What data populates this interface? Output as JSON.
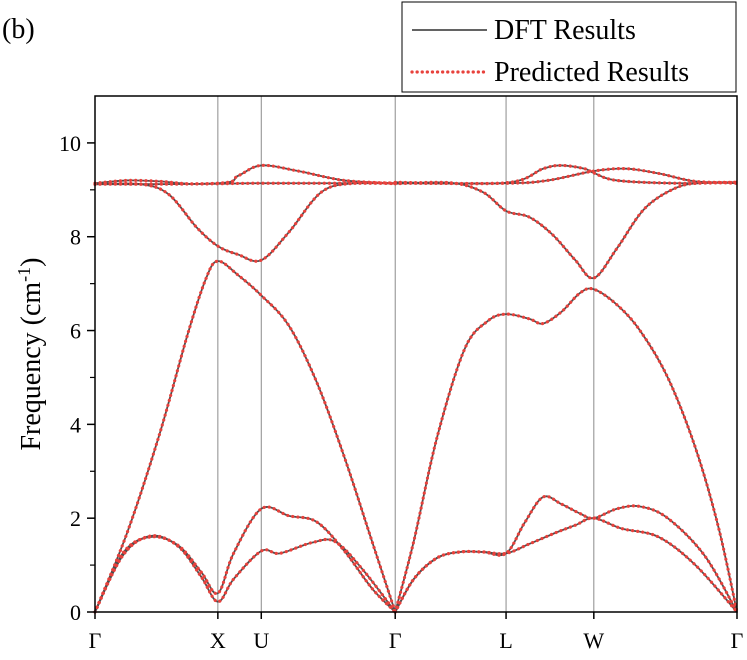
{
  "panel_label": "(b)",
  "chart_data": {
    "type": "line",
    "title": "",
    "ylabel": "Frequency (cm",
    "ylabel_sup": "-1",
    "ylabel_close": ")",
    "ylim": [
      0,
      11
    ],
    "yticks": [
      0,
      2,
      4,
      6,
      8,
      10
    ],
    "xlim": [
      0,
      6.95
    ],
    "kpoints": [
      {
        "label": "Γ",
        "x": 0
      },
      {
        "label": "X",
        "x": 1.33
      },
      {
        "label": "U",
        "x": 1.8
      },
      {
        "label": "Γ",
        "x": 3.25
      },
      {
        "label": "L",
        "x": 4.45
      },
      {
        "label": "W",
        "x": 5.4
      },
      {
        "label": "Γ",
        "x": 6.95
      }
    ],
    "legend": {
      "position": "top-right",
      "entries": [
        {
          "name": "DFT Results",
          "style": "solid",
          "color": "#4d4d4d"
        },
        {
          "name": "Predicted Results",
          "style": "dotted",
          "color": "#e8413c"
        }
      ]
    },
    "series": [
      {
        "points": [
          [
            0,
            0
          ],
          [
            0.3,
            1.2
          ],
          [
            0.6,
            1.62
          ],
          [
            0.9,
            1.4
          ],
          [
            1.15,
            0.75
          ],
          [
            1.33,
            0.22
          ],
          [
            1.5,
            0.7
          ],
          [
            1.8,
            1.3
          ],
          [
            2.0,
            1.25
          ],
          [
            2.35,
            1.48
          ],
          [
            2.6,
            1.5
          ],
          [
            2.9,
            0.9
          ],
          [
            3.25,
            0
          ]
        ]
      },
      {
        "points": [
          [
            0,
            0
          ],
          [
            0.3,
            1.25
          ],
          [
            0.6,
            1.6
          ],
          [
            0.9,
            1.42
          ],
          [
            1.15,
            0.85
          ],
          [
            1.33,
            0.4
          ],
          [
            1.5,
            1.25
          ],
          [
            1.8,
            2.2
          ],
          [
            2.1,
            2.05
          ],
          [
            2.4,
            1.92
          ],
          [
            2.7,
            1.3
          ],
          [
            3.0,
            0.5
          ],
          [
            3.25,
            0
          ]
        ]
      },
      {
        "points": [
          [
            0,
            0
          ],
          [
            0.35,
            1.7
          ],
          [
            0.7,
            3.8
          ],
          [
            1.0,
            5.9
          ],
          [
            1.2,
            7.1
          ],
          [
            1.33,
            7.48
          ],
          [
            1.55,
            7.18
          ],
          [
            1.8,
            6.75
          ],
          [
            2.1,
            6.1
          ],
          [
            2.4,
            4.9
          ],
          [
            2.7,
            3.3
          ],
          [
            3.0,
            1.5
          ],
          [
            3.25,
            0
          ]
        ]
      },
      {
        "points": [
          [
            0,
            9.12
          ],
          [
            0.5,
            9.12
          ],
          [
            0.8,
            8.9
          ],
          [
            1.1,
            8.2
          ],
          [
            1.33,
            7.8
          ],
          [
            1.55,
            7.62
          ],
          [
            1.8,
            7.5
          ],
          [
            2.1,
            8.1
          ],
          [
            2.45,
            8.95
          ],
          [
            2.8,
            9.14
          ],
          [
            3.25,
            9.13
          ]
        ]
      },
      {
        "points": [
          [
            0,
            9.14
          ],
          [
            0.35,
            9.2
          ],
          [
            0.7,
            9.18
          ],
          [
            1.0,
            9.13
          ],
          [
            1.33,
            9.13
          ],
          [
            1.8,
            9.14
          ],
          [
            3.25,
            9.14
          ]
        ]
      },
      {
        "points": [
          [
            0,
            9.12
          ],
          [
            1.33,
            9.14
          ],
          [
            1.55,
            9.3
          ],
          [
            1.8,
            9.52
          ],
          [
            2.2,
            9.4
          ],
          [
            2.7,
            9.2
          ],
          [
            3.25,
            9.14
          ]
        ]
      },
      {
        "points": [
          [
            3.25,
            0
          ],
          [
            3.45,
            0.7
          ],
          [
            3.7,
            1.15
          ],
          [
            3.95,
            1.28
          ],
          [
            4.2,
            1.28
          ],
          [
            4.45,
            1.25
          ],
          [
            4.7,
            1.45
          ],
          [
            5.0,
            1.7
          ],
          [
            5.2,
            1.85
          ],
          [
            5.4,
            2.0
          ],
          [
            5.7,
            1.78
          ],
          [
            6.1,
            1.6
          ],
          [
            6.5,
            1.0
          ],
          [
            6.95,
            0
          ]
        ]
      },
      {
        "points": [
          [
            3.25,
            0
          ],
          [
            3.45,
            0.7
          ],
          [
            3.7,
            1.15
          ],
          [
            3.95,
            1.28
          ],
          [
            4.2,
            1.28
          ],
          [
            4.45,
            1.25
          ],
          [
            4.65,
            1.9
          ],
          [
            4.85,
            2.45
          ],
          [
            5.05,
            2.3
          ],
          [
            5.25,
            2.1
          ],
          [
            5.4,
            2.0
          ],
          [
            5.65,
            2.2
          ],
          [
            5.9,
            2.25
          ],
          [
            6.2,
            2.0
          ],
          [
            6.6,
            1.2
          ],
          [
            6.95,
            0
          ]
        ]
      },
      {
        "points": [
          [
            3.25,
            0
          ],
          [
            3.45,
            1.5
          ],
          [
            3.7,
            3.7
          ],
          [
            4.0,
            5.6
          ],
          [
            4.25,
            6.2
          ],
          [
            4.45,
            6.35
          ],
          [
            4.7,
            6.25
          ],
          [
            4.85,
            6.15
          ],
          [
            5.05,
            6.4
          ],
          [
            5.25,
            6.8
          ],
          [
            5.4,
            6.88
          ],
          [
            5.65,
            6.55
          ],
          [
            5.9,
            6.0
          ],
          [
            6.2,
            5.0
          ],
          [
            6.5,
            3.5
          ],
          [
            6.75,
            1.8
          ],
          [
            6.95,
            0
          ]
        ]
      },
      {
        "points": [
          [
            3.25,
            9.13
          ],
          [
            3.85,
            9.15
          ],
          [
            4.2,
            8.95
          ],
          [
            4.45,
            8.55
          ],
          [
            4.7,
            8.42
          ],
          [
            4.95,
            8.05
          ],
          [
            5.2,
            7.5
          ],
          [
            5.4,
            7.12
          ],
          [
            5.65,
            7.75
          ],
          [
            5.95,
            8.6
          ],
          [
            6.3,
            9.05
          ],
          [
            6.6,
            9.15
          ],
          [
            6.95,
            9.14
          ]
        ]
      },
      {
        "points": [
          [
            3.25,
            9.16
          ],
          [
            4.45,
            9.15
          ],
          [
            4.85,
            9.45
          ],
          [
            5.05,
            9.52
          ],
          [
            5.3,
            9.45
          ],
          [
            5.4,
            9.36
          ],
          [
            5.65,
            9.2
          ],
          [
            6.3,
            9.14
          ],
          [
            6.95,
            9.16
          ]
        ]
      },
      {
        "points": [
          [
            3.25,
            9.14
          ],
          [
            4.45,
            9.14
          ],
          [
            4.9,
            9.2
          ],
          [
            5.4,
            9.4
          ],
          [
            5.75,
            9.45
          ],
          [
            6.1,
            9.35
          ],
          [
            6.5,
            9.18
          ],
          [
            6.95,
            9.16
          ]
        ]
      }
    ]
  }
}
